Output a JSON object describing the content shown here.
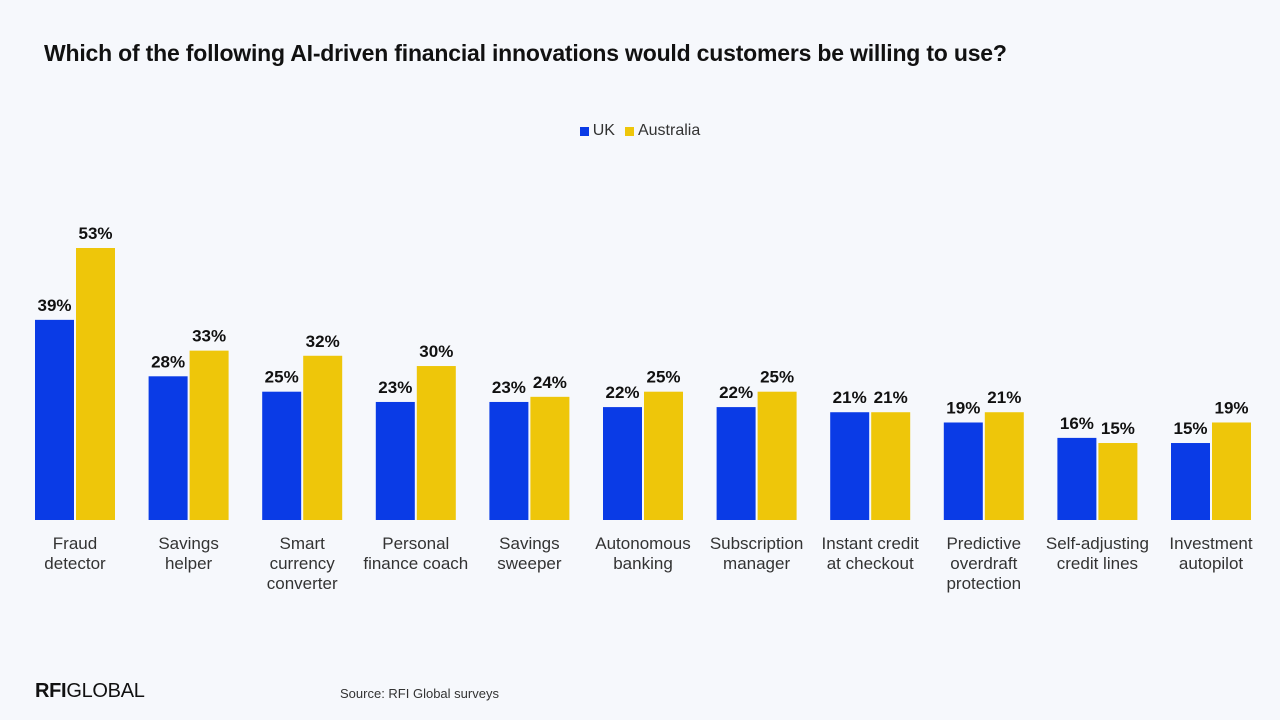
{
  "colors": {
    "uk": "#0a3be6",
    "australia": "#eec60a"
  },
  "chart_data": {
    "type": "bar",
    "title": "Which of the following AI-driven financial innovations would customers be willing to use?",
    "categories": [
      [
        "Fraud",
        "detector"
      ],
      [
        "Savings",
        "helper"
      ],
      [
        "Smart",
        "currency",
        "converter"
      ],
      [
        "Personal",
        "finance coach"
      ],
      [
        "Savings",
        "sweeper"
      ],
      [
        "Autonomous",
        "banking"
      ],
      [
        "Subscription",
        "manager"
      ],
      [
        "Instant credit",
        "at checkout"
      ],
      [
        "Predictive",
        "overdraft",
        "protection"
      ],
      [
        "Self-adjusting",
        "credit lines"
      ],
      [
        "Investment",
        "autopilot"
      ]
    ],
    "series": [
      {
        "name": "UK",
        "values": [
          39,
          28,
          25,
          23,
          23,
          22,
          22,
          21,
          19,
          16,
          15
        ]
      },
      {
        "name": "Australia",
        "values": [
          53,
          33,
          32,
          30,
          24,
          25,
          25,
          21,
          21,
          15,
          19
        ]
      }
    ],
    "value_suffix": "%",
    "ylim": [
      0,
      53
    ],
    "legend_position": "top-center",
    "grid": false
  },
  "footer": {
    "logo_text": "RFI GLOBAL",
    "source": "Source: RFI Global surveys"
  }
}
